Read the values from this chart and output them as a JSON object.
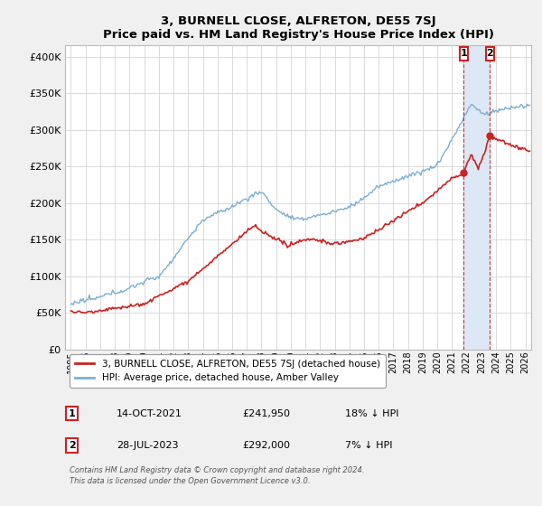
{
  "title": "3, BURNELL CLOSE, ALFRETON, DE55 7SJ",
  "subtitle": "Price paid vs. HM Land Registry's House Price Index (HPI)",
  "ylabel_ticks": [
    "£0",
    "£50K",
    "£100K",
    "£150K",
    "£200K",
    "£250K",
    "£300K",
    "£350K",
    "£400K"
  ],
  "ytick_values": [
    0,
    50000,
    100000,
    150000,
    200000,
    250000,
    300000,
    350000,
    400000
  ],
  "ylim": [
    0,
    415000
  ],
  "xlim_start": 1994.6,
  "xlim_end": 2026.4,
  "hpi_color": "#7bafd4",
  "price_color": "#cc2222",
  "marker1_x": 2021.79,
  "marker1_y": 241950,
  "marker2_x": 2023.58,
  "marker2_y": 292000,
  "vline1_x": 2021.79,
  "vline2_x": 2023.58,
  "legend_price_label": "3, BURNELL CLOSE, ALFRETON, DE55 7SJ (detached house)",
  "legend_hpi_label": "HPI: Average price, detached house, Amber Valley",
  "marker1_date": "14-OCT-2021",
  "marker1_price": "£241,950",
  "marker1_hpi": "18% ↓ HPI",
  "marker2_date": "28-JUL-2023",
  "marker2_price": "£292,000",
  "marker2_hpi": "7% ↓ HPI",
  "footnote": "Contains HM Land Registry data © Crown copyright and database right 2024.\nThis data is licensed under the Open Government Licence v3.0.",
  "background_color": "#f0f0f0",
  "plot_background": "#ffffff",
  "grid_color": "#cccccc",
  "span_color": "#dce8f5"
}
